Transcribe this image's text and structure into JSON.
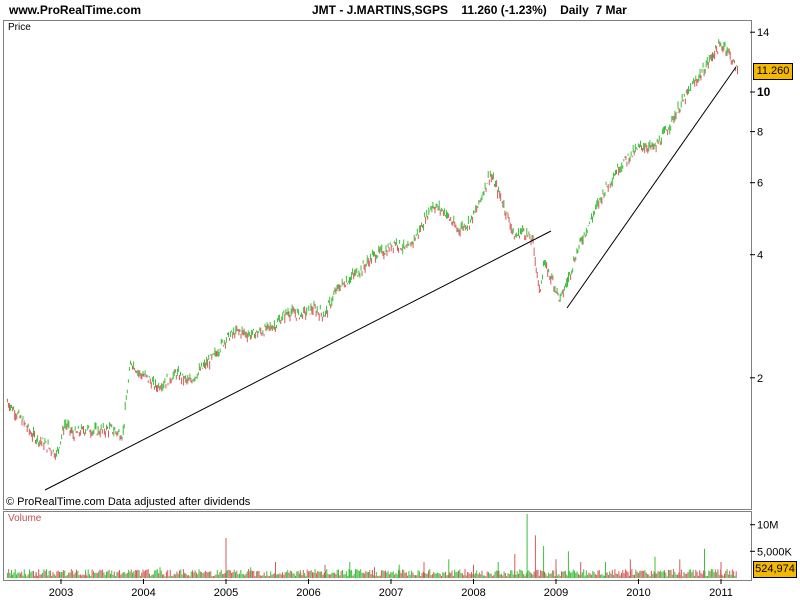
{
  "header": {
    "site": "www.ProRealTime.com",
    "symbol": "JMT - J.MARTINS,SGPS",
    "last": "11.260 (-1.23%)",
    "period": "Daily  7 Mar"
  },
  "price_panel": {
    "label": "Price",
    "footer": "© ProRealTime.com  Data adjusted after dividends",
    "last_value_tag": "11.260"
  },
  "volume_panel": {
    "label": "Volume",
    "last_value_tag": "524,974"
  },
  "colors": {
    "up": "#3cbf3c",
    "down": "#d45a5a",
    "tag": "#f5b800",
    "axis": "#808080"
  },
  "chart_data": [
    {
      "type": "line",
      "subtype": "ohlc-bars",
      "title": "JMT - J.MARTINS,SGPS",
      "ylabel": "Price",
      "yscale": "log",
      "ylim": [
        1.1,
        15
      ],
      "yticks": [
        2,
        4,
        6,
        8,
        10,
        14
      ],
      "x_tick_labels": [
        "2003",
        "2004",
        "2005",
        "2006",
        "2007",
        "2008",
        "2009",
        "2010",
        "2011"
      ],
      "x": [
        2002.35,
        2002.5,
        2002.65,
        2002.8,
        2002.95,
        2003.05,
        2003.15,
        2003.3,
        2003.45,
        2003.6,
        2003.75,
        2003.85,
        2003.95,
        2004.05,
        2004.15,
        2004.25,
        2004.4,
        2004.55,
        2004.7,
        2004.85,
        2005.0,
        2005.15,
        2005.3,
        2005.45,
        2005.6,
        2005.75,
        2005.9,
        2006.05,
        2006.2,
        2006.35,
        2006.5,
        2006.65,
        2006.8,
        2006.95,
        2007.05,
        2007.2,
        2007.35,
        2007.5,
        2007.65,
        2007.8,
        2007.95,
        2008.05,
        2008.2,
        2008.35,
        2008.5,
        2008.6,
        2008.72,
        2008.8,
        2008.85,
        2008.95,
        2009.05,
        2009.15,
        2009.3,
        2009.45,
        2009.6,
        2009.75,
        2009.9,
        2010.05,
        2010.2,
        2010.35,
        2010.5,
        2010.65,
        2010.8,
        2010.95,
        2011.05,
        2011.15,
        2011.2
      ],
      "series": [
        {
          "values": [
            1.75,
            1.6,
            1.45,
            1.38,
            1.3,
            1.55,
            1.45,
            1.5,
            1.48,
            1.5,
            1.45,
            2.2,
            2.05,
            2.0,
            1.9,
            1.95,
            2.05,
            1.95,
            2.1,
            2.25,
            2.5,
            2.6,
            2.55,
            2.6,
            2.7,
            2.9,
            2.85,
            2.95,
            2.85,
            3.3,
            3.5,
            3.7,
            4.0,
            4.1,
            4.3,
            4.1,
            4.6,
            5.3,
            5.1,
            4.6,
            4.8,
            5.2,
            6.3,
            5.4,
            4.4,
            4.6,
            4.3,
            3.2,
            3.8,
            3.5,
            3.1,
            3.5,
            4.3,
            5.0,
            5.8,
            6.5,
            7.0,
            7.4,
            7.3,
            8.1,
            9.2,
            10.3,
            11.4,
            12.8,
            13.0,
            11.8,
            11.26
          ]
        }
      ]
    },
    {
      "type": "bar",
      "title": "",
      "ylabel": "Volume",
      "yticks_labels": [
        "10M",
        "5,000K"
      ],
      "ylim": [
        0,
        12000000
      ],
      "x_tick_labels": [
        "2003",
        "2004",
        "2005",
        "2006",
        "2007",
        "2008",
        "2009",
        "2010",
        "2011"
      ],
      "x": [
        2002.4,
        2002.7,
        2003.0,
        2003.3,
        2003.6,
        2003.9,
        2004.2,
        2004.5,
        2004.8,
        2005.0,
        2005.3,
        2005.6,
        2005.9,
        2006.2,
        2006.5,
        2006.8,
        2007.1,
        2007.4,
        2007.7,
        2008.0,
        2008.3,
        2008.5,
        2008.65,
        2008.75,
        2008.85,
        2009.0,
        2009.15,
        2009.3,
        2009.6,
        2009.9,
        2010.2,
        2010.5,
        2010.8,
        2011.0,
        2011.15
      ],
      "values": [
        1500000,
        900000,
        1200000,
        1000000,
        800000,
        1500000,
        2000000,
        1000000,
        1200000,
        7500000,
        2000000,
        3000000,
        1500000,
        2500000,
        3000000,
        2000000,
        2500000,
        3000000,
        3500000,
        2500000,
        3000000,
        4500000,
        12000000,
        8000000,
        6000000,
        3500000,
        5000000,
        3000000,
        3000000,
        3500000,
        4000000,
        3500000,
        5500000,
        3000000,
        524974
      ]
    }
  ]
}
